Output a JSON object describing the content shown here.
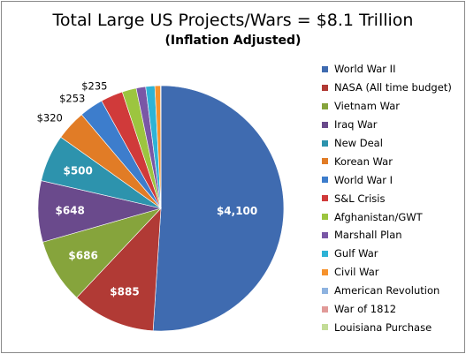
{
  "chart_data": {
    "type": "pie",
    "title": "Total Large US Projects/Wars = $8.1 Trillion",
    "subtitle": "(Inflation Adjusted)",
    "legend_position": "right",
    "slices": [
      {
        "name": "World War II",
        "value": 4100,
        "label": "$4,100",
        "color": "#3f6bb0"
      },
      {
        "name": "NASA (All time budget)",
        "value": 885,
        "label": "$885",
        "color": "#b13a35"
      },
      {
        "name": "Vietnam War",
        "value": 686,
        "label": "$686",
        "color": "#86a43c"
      },
      {
        "name": "Iraq War",
        "value": 648,
        "label": "$648",
        "color": "#6a4a8c"
      },
      {
        "name": "New Deal",
        "value": 500,
        "label": "$500",
        "color": "#2d93ad"
      },
      {
        "name": "Korean War",
        "value": 320,
        "label": "$320",
        "color": "#e17c26"
      },
      {
        "name": "World War I",
        "value": 253,
        "label": "$253",
        "color": "#3d7dcc"
      },
      {
        "name": "S&L Crisis",
        "value": 235,
        "label": "$235",
        "color": "#d03a3a"
      },
      {
        "name": "Afghanistan/GWT",
        "value": 150,
        "label": "",
        "color": "#9cc53f"
      },
      {
        "name": "Marshall Plan",
        "value": 100,
        "label": "",
        "color": "#7a57a6"
      },
      {
        "name": "Gulf War",
        "value": 96,
        "label": "",
        "color": "#2eb3d6"
      },
      {
        "name": "Civil War",
        "value": 60,
        "label": "",
        "color": "#f6922d"
      },
      {
        "name": "American Revolution",
        "value": 1.8,
        "label": "",
        "color": "#8eb3e0"
      },
      {
        "name": "War of 1812",
        "value": 1.5,
        "label": "",
        "color": "#e19a98"
      },
      {
        "name": "Louisiana Purchase",
        "value": 0.3,
        "label": "",
        "color": "#c3dc97"
      }
    ]
  }
}
